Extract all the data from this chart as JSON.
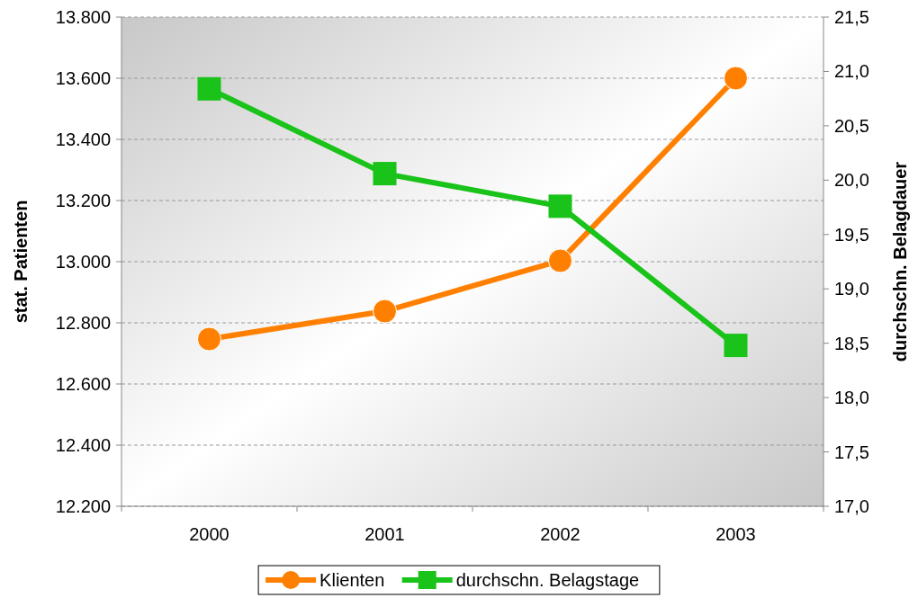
{
  "chart_data": {
    "type": "line",
    "categories": [
      "2000",
      "2001",
      "2002",
      "2003"
    ],
    "series": [
      {
        "name": "Klienten",
        "color": "#ff8000",
        "marker": "circle",
        "values": [
          12747,
          12838,
          13003,
          13600
        ]
      },
      {
        "name": "durchschn. Belagstage",
        "color": "#19c319",
        "marker": "square",
        "axis": "y2",
        "values": [
          20.84,
          20.06,
          19.76,
          18.48
        ]
      }
    ],
    "ylabel": "stat. Patienten",
    "y2label": "durchschn. Belagdauer",
    "ylim": [
      12200,
      13800
    ],
    "yticks": [
      {
        "value": 12200,
        "label": "12.200"
      },
      {
        "value": 12400,
        "label": "12.400"
      },
      {
        "value": 12600,
        "label": "12.600"
      },
      {
        "value": 12800,
        "label": "12.800"
      },
      {
        "value": 13000,
        "label": "13.000"
      },
      {
        "value": 13200,
        "label": "13.200"
      },
      {
        "value": 13400,
        "label": "13.400"
      },
      {
        "value": 13600,
        "label": "13.600"
      },
      {
        "value": 13800,
        "label": "13.800"
      }
    ],
    "y2lim": [
      17,
      21.5
    ],
    "y2ticks": [
      {
        "value": 17,
        "label": "17,0"
      },
      {
        "value": 17.5,
        "label": "17,5"
      },
      {
        "value": 18,
        "label": "18,0"
      },
      {
        "value": 18.5,
        "label": "18,5"
      },
      {
        "value": 19,
        "label": "19,0"
      },
      {
        "value": 19.5,
        "label": "19,5"
      },
      {
        "value": 20,
        "label": "20,0"
      },
      {
        "value": 20.5,
        "label": "20,5"
      },
      {
        "value": 21,
        "label": "21,0"
      },
      {
        "value": 21.5,
        "label": "21,5"
      }
    ],
    "grid": "y",
    "legend": "bottom",
    "line_style": "solid"
  }
}
